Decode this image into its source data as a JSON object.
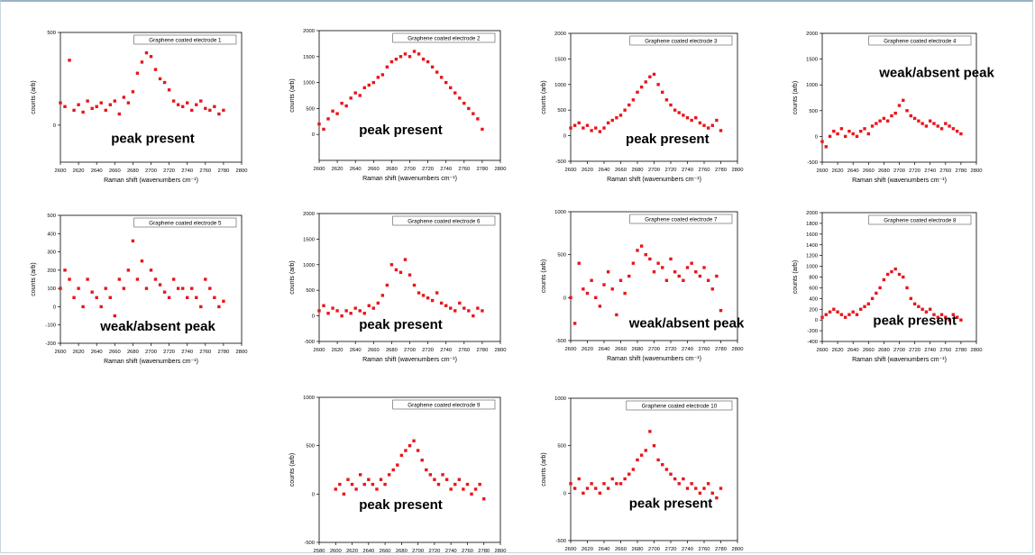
{
  "chart_data": [
    {
      "type": "scatter",
      "title": "Graphene coated electrode 1",
      "annotation": "peak present",
      "xlabel": "Raman shift (wavenumbers cm⁻¹)",
      "ylabel": "counts (arb)",
      "xlim": [
        2600,
        2800
      ],
      "ylim": [
        -200,
        500
      ],
      "xticks": [
        2600,
        2620,
        2640,
        2660,
        2680,
        2700,
        2720,
        2740,
        2760,
        2780,
        2800
      ],
      "yticks": [
        0,
        500
      ],
      "x": [
        2600,
        2605,
        2610,
        2615,
        2620,
        2625,
        2630,
        2635,
        2640,
        2645,
        2650,
        2655,
        2660,
        2665,
        2670,
        2675,
        2680,
        2685,
        2690,
        2695,
        2700,
        2705,
        2710,
        2715,
        2720,
        2725,
        2730,
        2735,
        2740,
        2745,
        2750,
        2755,
        2760,
        2765,
        2770,
        2775,
        2780
      ],
      "y": [
        120,
        100,
        350,
        80,
        110,
        70,
        130,
        90,
        100,
        120,
        80,
        110,
        130,
        60,
        150,
        120,
        180,
        280,
        340,
        390,
        370,
        300,
        250,
        230,
        190,
        130,
        110,
        100,
        120,
        80,
        110,
        130,
        90,
        80,
        100,
        60,
        80
      ],
      "color": "#e8151b"
    },
    {
      "type": "scatter",
      "title": "Graphene coated electrode 2",
      "annotation": "peak present",
      "xlabel": "Raman shift (wavenumbers cm⁻¹)",
      "ylabel": "counts (arb)",
      "xlim": [
        2600,
        2800
      ],
      "ylim": [
        -500,
        2000
      ],
      "xticks": [
        2600,
        2620,
        2640,
        2660,
        2680,
        2700,
        2720,
        2740,
        2760,
        2780,
        2800
      ],
      "yticks": [
        0,
        500,
        1000,
        1500,
        2000
      ],
      "x": [
        2600,
        2605,
        2610,
        2615,
        2620,
        2625,
        2630,
        2635,
        2640,
        2645,
        2650,
        2655,
        2660,
        2665,
        2670,
        2675,
        2680,
        2685,
        2690,
        2695,
        2700,
        2705,
        2710,
        2715,
        2720,
        2725,
        2730,
        2735,
        2740,
        2745,
        2750,
        2755,
        2760,
        2765,
        2770,
        2775,
        2780
      ],
      "y": [
        200,
        100,
        300,
        450,
        400,
        600,
        550,
        700,
        800,
        750,
        900,
        950,
        1000,
        1100,
        1150,
        1300,
        1400,
        1450,
        1500,
        1550,
        1500,
        1600,
        1550,
        1450,
        1400,
        1300,
        1200,
        1100,
        1000,
        900,
        800,
        700,
        600,
        500,
        400,
        300,
        100
      ],
      "color": "#e8151b"
    },
    {
      "type": "scatter",
      "title": "Graphene coated electrode 3",
      "annotation": "peak present",
      "xlabel": "Raman shift (wavenumbers cm⁻¹)",
      "ylabel": "counts (arb)",
      "xlim": [
        2600,
        2800
      ],
      "ylim": [
        -500,
        2000
      ],
      "xticks": [
        2600,
        2620,
        2640,
        2660,
        2680,
        2700,
        2720,
        2740,
        2760,
        2780,
        2800
      ],
      "yticks": [
        -500,
        0,
        500,
        1000,
        1500,
        2000
      ],
      "x": [
        2600,
        2605,
        2610,
        2615,
        2620,
        2625,
        2630,
        2635,
        2640,
        2645,
        2650,
        2655,
        2660,
        2665,
        2670,
        2675,
        2680,
        2685,
        2690,
        2695,
        2700,
        2705,
        2710,
        2715,
        2720,
        2725,
        2730,
        2735,
        2740,
        2745,
        2750,
        2755,
        2760,
        2765,
        2770,
        2775,
        2780
      ],
      "y": [
        150,
        200,
        250,
        150,
        200,
        100,
        150,
        80,
        150,
        250,
        300,
        350,
        400,
        500,
        600,
        700,
        850,
        950,
        1050,
        1150,
        1200,
        1000,
        850,
        700,
        600,
        500,
        450,
        400,
        350,
        300,
        350,
        250,
        200,
        150,
        200,
        300,
        100
      ],
      "color": "#e8151b"
    },
    {
      "type": "scatter",
      "title": "Graphene coated electrode 4",
      "annotation": "weak/absent peak",
      "xlabel": "Raman shift (wavenumbers cm⁻¹)",
      "ylabel": "counts (arb)",
      "xlim": [
        2600,
        2800
      ],
      "ylim": [
        -500,
        2000
      ],
      "xticks": [
        2600,
        2620,
        2640,
        2660,
        2680,
        2700,
        2720,
        2740,
        2760,
        2780,
        2800
      ],
      "yticks": [
        -500,
        0,
        500,
        1000,
        1500,
        2000
      ],
      "x": [
        2600,
        2605,
        2610,
        2615,
        2620,
        2625,
        2630,
        2635,
        2640,
        2645,
        2650,
        2655,
        2660,
        2665,
        2670,
        2675,
        2680,
        2685,
        2690,
        2695,
        2700,
        2705,
        2710,
        2715,
        2720,
        2725,
        2730,
        2735,
        2740,
        2745,
        2750,
        2755,
        2760,
        2765,
        2770,
        2775,
        2780
      ],
      "y": [
        -100,
        -200,
        0,
        100,
        50,
        150,
        0,
        100,
        50,
        0,
        100,
        150,
        50,
        200,
        250,
        300,
        350,
        300,
        400,
        450,
        600,
        700,
        500,
        400,
        350,
        300,
        250,
        200,
        300,
        250,
        200,
        150,
        250,
        200,
        150,
        100,
        50
      ],
      "color": "#e8151b"
    },
    {
      "type": "scatter",
      "title": "Graphene coated electrode 5",
      "annotation": "weak/absent peak",
      "xlabel": "Raman shift (wavenumbers cm⁻¹)",
      "ylabel": "counts (arb)",
      "xlim": [
        2600,
        2800
      ],
      "ylim": [
        -200,
        500
      ],
      "xticks": [
        2600,
        2620,
        2640,
        2660,
        2680,
        2700,
        2720,
        2740,
        2760,
        2780,
        2800
      ],
      "yticks": [
        -200,
        -100,
        0,
        100,
        200,
        300,
        400,
        500
      ],
      "x": [
        2600,
        2605,
        2610,
        2615,
        2620,
        2625,
        2630,
        2635,
        2640,
        2645,
        2650,
        2655,
        2660,
        2665,
        2670,
        2675,
        2680,
        2685,
        2690,
        2695,
        2700,
        2705,
        2710,
        2715,
        2720,
        2725,
        2730,
        2735,
        2740,
        2745,
        2750,
        2755,
        2760,
        2765,
        2770,
        2775,
        2780
      ],
      "y": [
        100,
        200,
        150,
        50,
        100,
        0,
        150,
        80,
        50,
        0,
        100,
        50,
        -50,
        150,
        100,
        200,
        360,
        150,
        250,
        100,
        200,
        150,
        120,
        80,
        50,
        150,
        100,
        100,
        50,
        100,
        50,
        0,
        150,
        100,
        50,
        0,
        30
      ],
      "color": "#e8151b"
    },
    {
      "type": "scatter",
      "title": "Graphene coated electrode 6",
      "annotation": "peak present",
      "xlabel": "Raman shift (wavenumbers cm⁻¹)",
      "ylabel": "counts (arb)",
      "xlim": [
        2600,
        2800
      ],
      "ylim": [
        -500,
        2000
      ],
      "xticks": [
        2600,
        2620,
        2640,
        2660,
        2680,
        2700,
        2720,
        2740,
        2760,
        2780,
        2800
      ],
      "yticks": [
        -500,
        0,
        500,
        1000,
        1500,
        2000
      ],
      "x": [
        2600,
        2605,
        2610,
        2615,
        2620,
        2625,
        2630,
        2635,
        2640,
        2645,
        2650,
        2655,
        2660,
        2665,
        2670,
        2675,
        2680,
        2685,
        2690,
        2695,
        2700,
        2705,
        2710,
        2715,
        2720,
        2725,
        2730,
        2735,
        2740,
        2745,
        2750,
        2755,
        2760,
        2765,
        2770,
        2775,
        2780
      ],
      "y": [
        100,
        200,
        50,
        150,
        100,
        0,
        100,
        50,
        150,
        100,
        50,
        200,
        150,
        250,
        400,
        600,
        1000,
        900,
        850,
        1100,
        800,
        600,
        450,
        400,
        350,
        300,
        450,
        250,
        200,
        150,
        100,
        250,
        150,
        100,
        0,
        150,
        100
      ],
      "color": "#e8151b"
    },
    {
      "type": "scatter",
      "title": "Graphene coated electrode 7",
      "annotation": "weak/absent peak",
      "xlabel": "Raman shift (wavenumbers cm⁻¹)",
      "ylabel": "counts (arb)",
      "xlim": [
        2600,
        2800
      ],
      "ylim": [
        -500,
        1000
      ],
      "xticks": [
        2600,
        2620,
        2640,
        2660,
        2680,
        2700,
        2720,
        2740,
        2760,
        2780,
        2800
      ],
      "yticks": [
        -500,
        0,
        500,
        1000
      ],
      "x": [
        2600,
        2605,
        2610,
        2615,
        2620,
        2625,
        2630,
        2635,
        2640,
        2645,
        2650,
        2655,
        2660,
        2665,
        2670,
        2675,
        2680,
        2685,
        2690,
        2695,
        2700,
        2705,
        2710,
        2715,
        2720,
        2725,
        2730,
        2735,
        2740,
        2745,
        2750,
        2755,
        2760,
        2765,
        2770,
        2775,
        2780
      ],
      "y": [
        0,
        -300,
        400,
        100,
        50,
        200,
        0,
        -100,
        150,
        300,
        100,
        -200,
        200,
        50,
        250,
        400,
        550,
        600,
        500,
        450,
        300,
        400,
        350,
        200,
        450,
        300,
        250,
        200,
        350,
        400,
        300,
        250,
        350,
        200,
        100,
        250,
        -150
      ],
      "color": "#e8151b"
    },
    {
      "type": "scatter",
      "title": "Graphene coated electrode 8",
      "annotation": "peak present",
      "xlabel": "Raman shift (wavenumbers cm⁻¹)",
      "ylabel": "counts (arb)",
      "xlim": [
        2600,
        2800
      ],
      "ylim": [
        -400,
        2000
      ],
      "xticks": [
        2600,
        2620,
        2640,
        2660,
        2680,
        2700,
        2720,
        2740,
        2760,
        2780,
        2800
      ],
      "yticks": [
        -400,
        -200,
        0,
        200,
        400,
        600,
        800,
        1000,
        1200,
        1400,
        1600,
        1800,
        2000
      ],
      "x": [
        2600,
        2605,
        2610,
        2615,
        2620,
        2625,
        2630,
        2635,
        2640,
        2645,
        2650,
        2655,
        2660,
        2665,
        2670,
        2675,
        2680,
        2685,
        2690,
        2695,
        2700,
        2705,
        2710,
        2715,
        2720,
        2725,
        2730,
        2735,
        2740,
        2745,
        2750,
        2755,
        2760,
        2765,
        2770,
        2775,
        2780
      ],
      "y": [
        50,
        100,
        150,
        200,
        150,
        100,
        50,
        100,
        150,
        100,
        200,
        250,
        300,
        400,
        500,
        600,
        750,
        850,
        900,
        950,
        850,
        800,
        600,
        400,
        300,
        250,
        200,
        150,
        200,
        100,
        50,
        100,
        50,
        0,
        100,
        50,
        0
      ],
      "color": "#e8151b"
    },
    {
      "type": "scatter",
      "title": "Graphene coated electrode 9",
      "annotation": "peak present",
      "xlabel": "Raman shift (wavenumbers cm⁻¹)",
      "ylabel": "counts (arb)",
      "xlim": [
        2580,
        2800
      ],
      "ylim": [
        -500,
        1000
      ],
      "xticks": [
        2580,
        2600,
        2620,
        2640,
        2660,
        2680,
        2700,
        2720,
        2740,
        2760,
        2780,
        2800
      ],
      "yticks": [
        -500,
        0,
        500,
        1000
      ],
      "x": [
        2600,
        2605,
        2610,
        2615,
        2620,
        2625,
        2630,
        2635,
        2640,
        2645,
        2650,
        2655,
        2660,
        2665,
        2670,
        2675,
        2680,
        2685,
        2690,
        2695,
        2700,
        2705,
        2710,
        2715,
        2720,
        2725,
        2730,
        2735,
        2740,
        2745,
        2750,
        2755,
        2760,
        2765,
        2770,
        2775,
        2780
      ],
      "y": [
        50,
        100,
        0,
        150,
        100,
        50,
        200,
        100,
        150,
        100,
        50,
        150,
        100,
        200,
        250,
        300,
        400,
        450,
        500,
        550,
        450,
        350,
        250,
        200,
        150,
        100,
        200,
        150,
        50,
        100,
        150,
        50,
        100,
        0,
        50,
        100,
        -50
      ],
      "color": "#e8151b"
    },
    {
      "type": "scatter",
      "title": "Graphene coated electrode 10",
      "annotation": "peak present",
      "xlabel": "Raman shift (wavenumbers cm⁻¹)",
      "ylabel": "counts (arb)",
      "xlim": [
        2600,
        2800
      ],
      "ylim": [
        -500,
        1000
      ],
      "xticks": [
        2600,
        2620,
        2640,
        2660,
        2680,
        2700,
        2720,
        2740,
        2760,
        2780,
        2800
      ],
      "yticks": [
        -500,
        0,
        500,
        1000
      ],
      "x": [
        2600,
        2605,
        2610,
        2615,
        2620,
        2625,
        2630,
        2635,
        2640,
        2645,
        2650,
        2655,
        2660,
        2665,
        2670,
        2675,
        2680,
        2685,
        2690,
        2695,
        2700,
        2705,
        2710,
        2715,
        2720,
        2725,
        2730,
        2735,
        2740,
        2745,
        2750,
        2755,
        2760,
        2765,
        2770,
        2775,
        2780
      ],
      "y": [
        100,
        50,
        150,
        0,
        50,
        100,
        50,
        0,
        100,
        50,
        150,
        100,
        100,
        150,
        200,
        250,
        350,
        400,
        450,
        650,
        500,
        350,
        300,
        250,
        200,
        150,
        100,
        150,
        50,
        100,
        50,
        0,
        50,
        100,
        0,
        -50,
        50
      ],
      "color": "#e8151b"
    }
  ]
}
